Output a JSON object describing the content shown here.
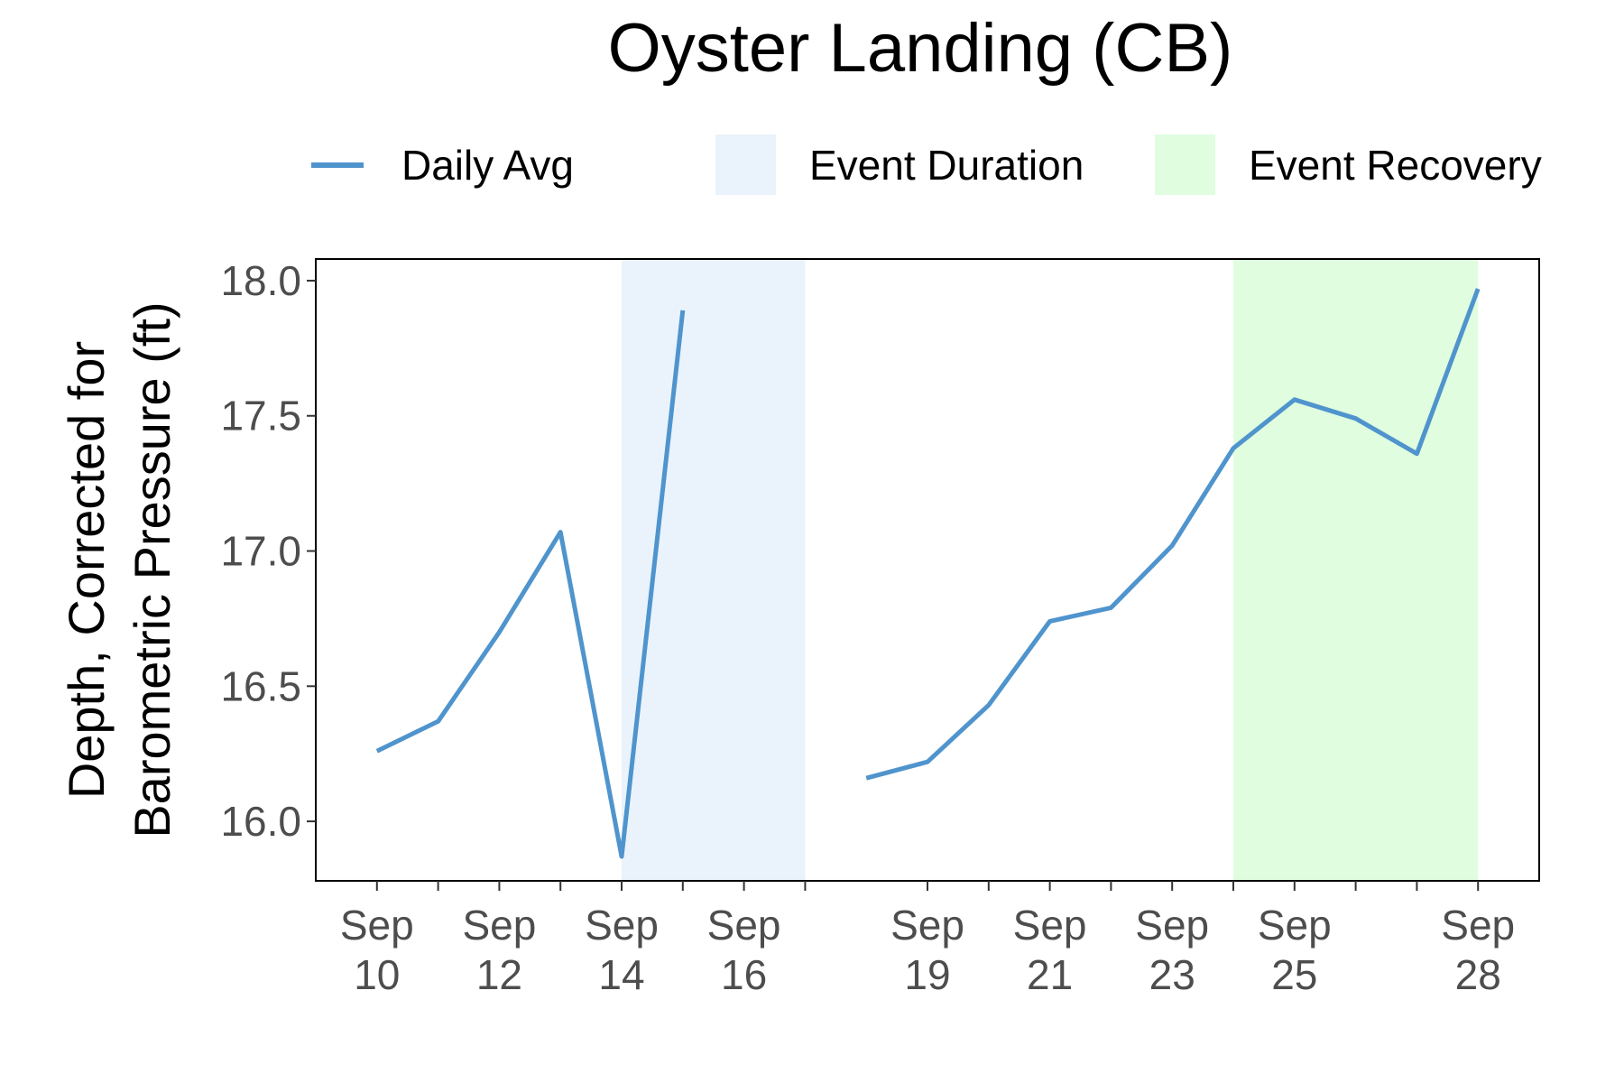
{
  "chart_data": {
    "type": "line",
    "title": "Oyster Landing (CB)",
    "xlabel": "",
    "ylabel_lines": [
      "Depth, Corrected for",
      "Barometric Pressure (ft)"
    ],
    "ylim": [
      15.78,
      18.08
    ],
    "yticks": [
      "16.0",
      "16.5",
      "17.0",
      "17.5",
      "18.0"
    ],
    "xlim": [
      "2023-09-09",
      "2023-09-29"
    ],
    "xticks": [
      {
        "date": "2023-09-10",
        "label": [
          "Sep",
          "10"
        ]
      },
      {
        "date": "2023-09-11",
        "label": []
      },
      {
        "date": "2023-09-12",
        "label": [
          "Sep",
          "12"
        ]
      },
      {
        "date": "2023-09-13",
        "label": []
      },
      {
        "date": "2023-09-14",
        "label": [
          "Sep",
          "14"
        ]
      },
      {
        "date": "2023-09-15",
        "label": []
      },
      {
        "date": "2023-09-16",
        "label": [
          "Sep",
          "16"
        ]
      },
      {
        "date": "2023-09-17",
        "label": []
      },
      {
        "date": "2023-09-19",
        "label": [
          "Sep",
          "19"
        ]
      },
      {
        "date": "2023-09-20",
        "label": []
      },
      {
        "date": "2023-09-21",
        "label": [
          "Sep",
          "21"
        ]
      },
      {
        "date": "2023-09-22",
        "label": []
      },
      {
        "date": "2023-09-23",
        "label": [
          "Sep",
          "23"
        ]
      },
      {
        "date": "2023-09-24",
        "label": []
      },
      {
        "date": "2023-09-25",
        "label": [
          "Sep",
          "25"
        ]
      },
      {
        "date": "2023-09-26",
        "label": []
      },
      {
        "date": "2023-09-27",
        "label": []
      },
      {
        "date": "2023-09-28",
        "label": [
          "Sep",
          "28"
        ]
      }
    ],
    "series": [
      {
        "name": "Daily Avg",
        "color": "#4f94cd",
        "segments": [
          [
            {
              "x": "2023-09-10",
              "y": 16.26
            },
            {
              "x": "2023-09-11",
              "y": 16.37
            },
            {
              "x": "2023-09-12",
              "y": 16.7
            },
            {
              "x": "2023-09-13",
              "y": 17.07
            },
            {
              "x": "2023-09-14",
              "y": 15.87
            },
            {
              "x": "2023-09-15",
              "y": 17.89
            }
          ],
          [
            {
              "x": "2023-09-18",
              "y": 16.16
            },
            {
              "x": "2023-09-19",
              "y": 16.22
            },
            {
              "x": "2023-09-20",
              "y": 16.43
            },
            {
              "x": "2023-09-21",
              "y": 16.74
            },
            {
              "x": "2023-09-22",
              "y": 16.79
            },
            {
              "x": "2023-09-23",
              "y": 17.02
            },
            {
              "x": "2023-09-24",
              "y": 17.38
            },
            {
              "x": "2023-09-25",
              "y": 17.56
            },
            {
              "x": "2023-09-26",
              "y": 17.49
            },
            {
              "x": "2023-09-27",
              "y": 17.36
            },
            {
              "x": "2023-09-28",
              "y": 17.97
            }
          ]
        ]
      }
    ],
    "bands": [
      {
        "name": "Event Duration",
        "start": "2023-09-14",
        "end": "2023-09-17",
        "color": "#eaf3fb"
      },
      {
        "name": "Event Recovery",
        "start": "2023-09-24",
        "end": "2023-09-28",
        "color": "#e0fde0"
      }
    ],
    "legend": {
      "position": "top",
      "items": [
        {
          "label": "Daily Avg",
          "kind": "line",
          "color": "#4f94cd"
        },
        {
          "label": "Event Duration",
          "kind": "fill",
          "color": "#eaf3fb"
        },
        {
          "label": "Event Recovery",
          "kind": "fill",
          "color": "#e0fde0"
        }
      ]
    },
    "grid": false
  }
}
